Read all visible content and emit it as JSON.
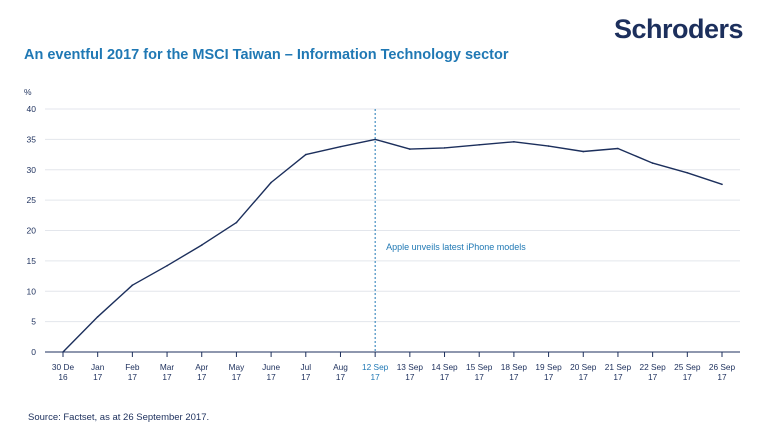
{
  "brand": {
    "logo_text": "Schroders",
    "color": "#1c2f5c"
  },
  "title": "An eventful 2017 for the MSCI Taiwan – Information Technology sector",
  "source": "Source: Factset, as at 26 September 2017.",
  "chart_data": {
    "type": "line",
    "title": "An eventful 2017 for the MSCI Taiwan – Information Technology sector",
    "ylabel": "%",
    "xlabel": "",
    "ylim": [
      0,
      40
    ],
    "yticks": [
      0,
      5,
      10,
      15,
      20,
      25,
      30,
      35,
      40
    ],
    "grid": true,
    "categories": [
      [
        "30 De",
        "16"
      ],
      [
        "Jan",
        "17"
      ],
      [
        "Feb",
        "17"
      ],
      [
        "Mar",
        "17"
      ],
      [
        "Apr",
        "17"
      ],
      [
        "May",
        "17"
      ],
      [
        "June",
        "17"
      ],
      [
        "Jul",
        "17"
      ],
      [
        "Aug",
        "17"
      ],
      [
        "12 Sep",
        "17"
      ],
      [
        "13 Sep",
        "17"
      ],
      [
        "14 Sep",
        "17"
      ],
      [
        "15 Sep",
        "17"
      ],
      [
        "18 Sep",
        "17"
      ],
      [
        "19 Sep",
        "17"
      ],
      [
        "20 Sep",
        "17"
      ],
      [
        "21 Sep",
        "17"
      ],
      [
        "22 Sep",
        "17"
      ],
      [
        "25 Sep",
        "17"
      ],
      [
        "26 Sep",
        "17"
      ]
    ],
    "highlight_category_index": 9,
    "series": [
      {
        "values": [
          0,
          5.8,
          11,
          14.2,
          17.6,
          21.3,
          27.9,
          32.5,
          33.8,
          35,
          33.4,
          33.6,
          34.1,
          34.6,
          33.9,
          33,
          33.5,
          31.1,
          29.5,
          27.6
        ]
      }
    ],
    "line_color": "#1c2f5c",
    "accent_color": "#1f78b4",
    "annotations": [
      {
        "text": "Apple unveils latest iPhone models",
        "category_index": 9
      }
    ]
  }
}
